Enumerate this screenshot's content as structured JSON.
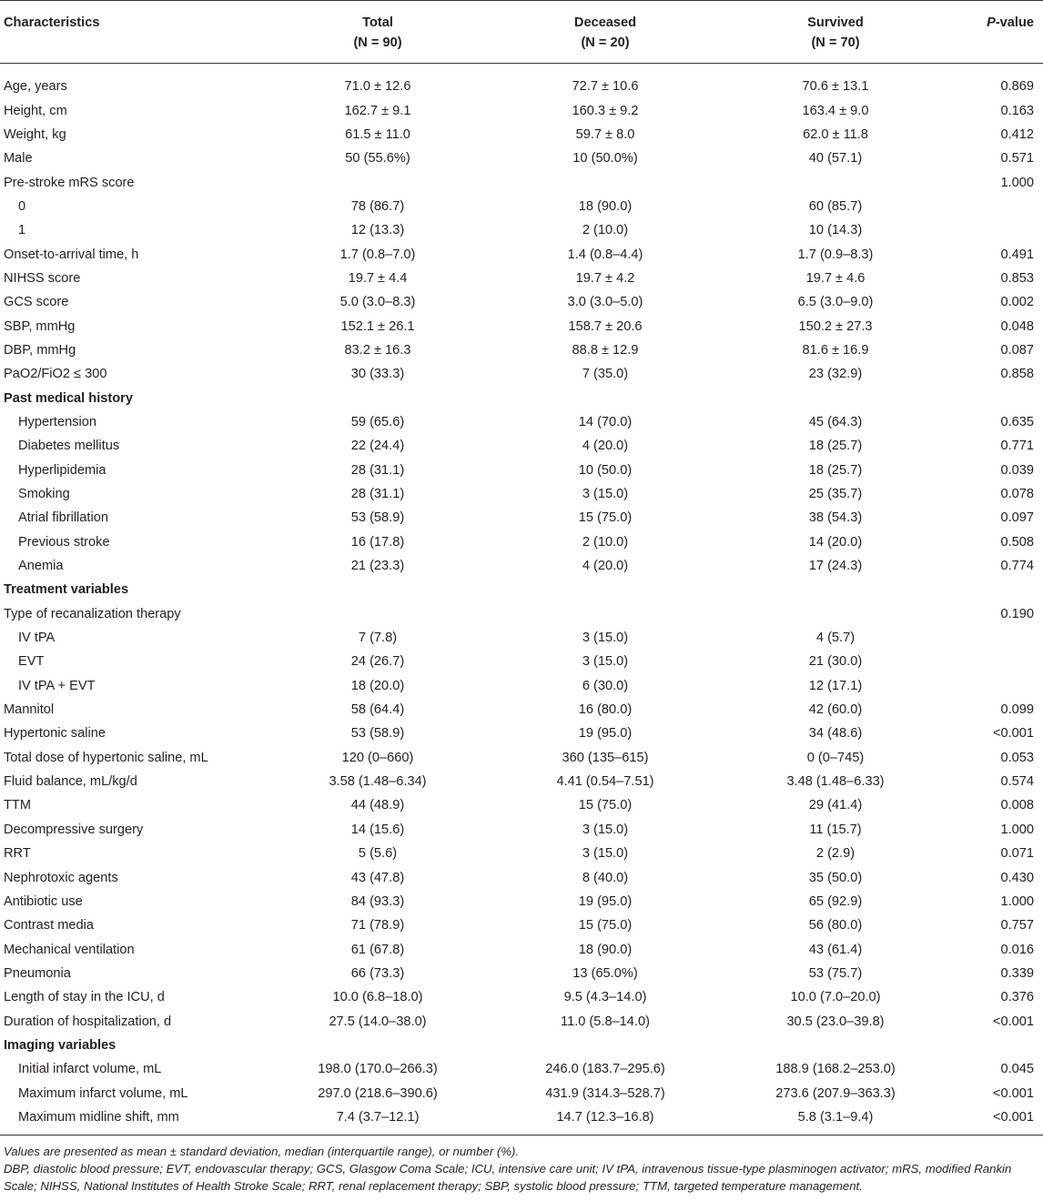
{
  "header": {
    "col_characteristics": "Characteristics",
    "col_total": "Total",
    "col_total_n": "(N = 90)",
    "col_deceased": "Deceased",
    "col_deceased_n": "(N = 20)",
    "col_survived": "Survived",
    "col_survived_n": "(N = 70)",
    "col_p_italic": "P",
    "col_p_rest": "-value"
  },
  "rows": [
    {
      "label": "Age, years",
      "total": "71.0 ± 12.6",
      "deceased": "72.7 ± 10.6",
      "survived": "70.6 ± 13.1",
      "p": "0.869"
    },
    {
      "label": "Height, cm",
      "total": "162.7 ± 9.1",
      "deceased": "160.3 ± 9.2",
      "survived": "163.4 ± 9.0",
      "p": "0.163"
    },
    {
      "label": "Weight, kg",
      "total": "61.5 ± 11.0",
      "deceased": "59.7 ± 8.0",
      "survived": "62.0 ± 11.8",
      "p": "0.412"
    },
    {
      "label": "Male",
      "total": "50 (55.6%)",
      "deceased": "10 (50.0%)",
      "survived": "40 (57.1)",
      "p": "0.571"
    },
    {
      "label": "Pre-stroke mRS score",
      "total": "",
      "deceased": "",
      "survived": "",
      "p": "1.000"
    },
    {
      "label": "0",
      "indent": true,
      "total": "78 (86.7)",
      "deceased": "18 (90.0)",
      "survived": "60 (85.7)",
      "p": ""
    },
    {
      "label": "1",
      "indent": true,
      "total": "12 (13.3)",
      "deceased": "2 (10.0)",
      "survived": "10 (14.3)",
      "p": ""
    },
    {
      "label": "Onset-to-arrival time, h",
      "total": "1.7 (0.8–7.0)",
      "deceased": "1.4 (0.8–4.4)",
      "survived": "1.7 (0.9–8.3)",
      "p": "0.491"
    },
    {
      "label": "NIHSS score",
      "total": "19.7 ± 4.4",
      "deceased": "19.7 ± 4.2",
      "survived": "19.7 ± 4.6",
      "p": "0.853"
    },
    {
      "label": "GCS score",
      "total": "5.0 (3.0–8.3)",
      "deceased": "3.0 (3.0–5.0)",
      "survived": "6.5 (3.0–9.0)",
      "p": "0.002"
    },
    {
      "label": "SBP, mmHg",
      "total": "152.1 ± 26.1",
      "deceased": "158.7 ± 20.6",
      "survived": "150.2 ± 27.3",
      "p": "0.048"
    },
    {
      "label": "DBP, mmHg",
      "total": "83.2 ± 16.3",
      "deceased": "88.8 ± 12.9",
      "survived": "81.6 ± 16.9",
      "p": "0.087"
    },
    {
      "label": "PaO2/FiO2 ≤ 300",
      "total": "30 (33.3)",
      "deceased": "7 (35.0)",
      "survived": "23 (32.9)",
      "p": "0.858"
    },
    {
      "label": "Past medical history",
      "section": true,
      "total": "",
      "deceased": "",
      "survived": "",
      "p": ""
    },
    {
      "label": "Hypertension",
      "indent": true,
      "total": "59 (65.6)",
      "deceased": "14 (70.0)",
      "survived": "45 (64.3)",
      "p": "0.635"
    },
    {
      "label": "Diabetes mellitus",
      "indent": true,
      "total": "22 (24.4)",
      "deceased": "4 (20.0)",
      "survived": "18 (25.7)",
      "p": "0.771"
    },
    {
      "label": "Hyperlipidemia",
      "indent": true,
      "total": "28 (31.1)",
      "deceased": "10 (50.0)",
      "survived": "18 (25.7)",
      "p": "0.039"
    },
    {
      "label": "Smoking",
      "indent": true,
      "total": "28 (31.1)",
      "deceased": "3 (15.0)",
      "survived": "25 (35.7)",
      "p": "0.078"
    },
    {
      "label": "Atrial fibrillation",
      "indent": true,
      "total": "53 (58.9)",
      "deceased": "15 (75.0)",
      "survived": "38 (54.3)",
      "p": "0.097"
    },
    {
      "label": "Previous stroke",
      "indent": true,
      "total": "16 (17.8)",
      "deceased": "2 (10.0)",
      "survived": "14 (20.0)",
      "p": "0.508"
    },
    {
      "label": "Anemia",
      "indent": true,
      "total": "21 (23.3)",
      "deceased": "4 (20.0)",
      "survived": "17 (24.3)",
      "p": "0.774"
    },
    {
      "label": "Treatment variables",
      "section": true,
      "total": "",
      "deceased": "",
      "survived": "",
      "p": ""
    },
    {
      "label": "Type of recanalization therapy",
      "total": "",
      "deceased": "",
      "survived": "",
      "p": "0.190"
    },
    {
      "label": "IV tPA",
      "indent": true,
      "total": "7 (7.8)",
      "deceased": "3 (15.0)",
      "survived": "4 (5.7)",
      "p": ""
    },
    {
      "label": "EVT",
      "indent": true,
      "total": "24 (26.7)",
      "deceased": "3 (15.0)",
      "survived": "21 (30.0)",
      "p": ""
    },
    {
      "label": "IV tPA + EVT",
      "indent": true,
      "total": "18 (20.0)",
      "deceased": "6 (30.0)",
      "survived": "12 (17.1)",
      "p": ""
    },
    {
      "label": "Mannitol",
      "total": "58 (64.4)",
      "deceased": "16 (80.0)",
      "survived": "42 (60.0)",
      "p": "0.099"
    },
    {
      "label": "Hypertonic saline",
      "total": "53 (58.9)",
      "deceased": "19 (95.0)",
      "survived": "34 (48.6)",
      "p": "<0.001"
    },
    {
      "label": "Total dose of hypertonic saline, mL",
      "total": "120 (0–660)",
      "deceased": "360 (135–615)",
      "survived": "0 (0–745)",
      "p": "0.053"
    },
    {
      "label": "Fluid balance, mL/kg/d",
      "total": "3.58 (1.48–6.34)",
      "deceased": "4.41 (0.54–7.51)",
      "survived": "3.48 (1.48–6.33)",
      "p": "0.574"
    },
    {
      "label": "TTM",
      "total": "44 (48.9)",
      "deceased": "15 (75.0)",
      "survived": "29 (41.4)",
      "p": "0.008"
    },
    {
      "label": "Decompressive surgery",
      "total": "14 (15.6)",
      "deceased": "3 (15.0)",
      "survived": "11 (15.7)",
      "p": "1.000"
    },
    {
      "label": "RRT",
      "total": "5 (5.6)",
      "deceased": "3 (15.0)",
      "survived": "2 (2.9)",
      "p": "0.071"
    },
    {
      "label": "Nephrotoxic agents",
      "total": "43 (47.8)",
      "deceased": "8 (40.0)",
      "survived": "35 (50.0)",
      "p": "0.430"
    },
    {
      "label": "Antibiotic use",
      "total": "84 (93.3)",
      "deceased": "19 (95.0)",
      "survived": "65 (92.9)",
      "p": "1.000"
    },
    {
      "label": "Contrast media",
      "total": "71 (78.9)",
      "deceased": "15 (75.0)",
      "survived": "56 (80.0)",
      "p": "0.757"
    },
    {
      "label": "Mechanical ventilation",
      "total": "61 (67.8)",
      "deceased": "18 (90.0)",
      "survived": "43 (61.4)",
      "p": "0.016"
    },
    {
      "label": "Pneumonia",
      "total": "66 (73.3)",
      "deceased": "13 (65.0%)",
      "survived": "53 (75.7)",
      "p": "0.339"
    },
    {
      "label": "Length of stay in the ICU, d",
      "total": "10.0 (6.8–18.0)",
      "deceased": "9.5 (4.3–14.0)",
      "survived": "10.0 (7.0–20.0)",
      "p": "0.376"
    },
    {
      "label": "Duration of hospitalization, d",
      "total": "27.5 (14.0–38.0)",
      "deceased": "11.0 (5.8–14.0)",
      "survived": "30.5 (23.0–39.8)",
      "p": "<0.001"
    },
    {
      "label": "Imaging variables",
      "section": true,
      "total": "",
      "deceased": "",
      "survived": "",
      "p": ""
    },
    {
      "label": "Initial infarct volume, mL",
      "indent": true,
      "total": "198.0 (170.0–266.3)",
      "deceased": "246.0 (183.7–295.6)",
      "survived": "188.9 (168.2–253.0)",
      "p": "0.045"
    },
    {
      "label": "Maximum infarct volume, mL",
      "indent": true,
      "total": "297.0 (218.6–390.6)",
      "deceased": "431.9 (314.3–528.7)",
      "survived": "273.6 (207.9–363.3)",
      "p": "<0.001"
    },
    {
      "label": "Maximum midline shift, mm",
      "indent": true,
      "total": "7.4 (3.7–12.1)",
      "deceased": "14.7 (12.3–16.8)",
      "survived": "5.8 (3.1–9.4)",
      "p": "<0.001"
    }
  ],
  "footnotes": {
    "line1": "Values are presented as mean ± standard deviation, median (interquartile range), or number (%).",
    "line2": "DBP, diastolic blood pressure; EVT, endovascular therapy; GCS, Glasgow Coma Scale; ICU, intensive care unit; IV tPA, intravenous tissue-type plasminogen activator; mRS, modified Rankin Scale; NIHSS, National Institutes of Health Stroke Scale; RRT, renal replacement therapy; SBP, systolic blood pressure; TTM, targeted temperature management."
  }
}
